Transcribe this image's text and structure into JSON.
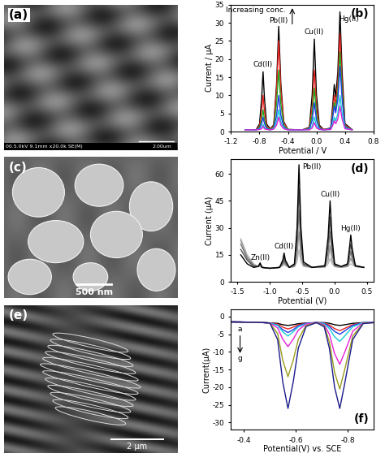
{
  "images": [
    {
      "label": "(a)",
      "info": "00.5.0kV 9.1mm x20.0k SE(M)",
      "scale_bar": "2.00um"
    },
    {
      "label": "(c)",
      "scale_bar": "500 nm"
    },
    {
      "label": "(e)",
      "scale_bar": "2 μm"
    }
  ],
  "chart_data": [
    {
      "type": "line",
      "title": "(b)",
      "x_label": "Potential / V",
      "y_label": "Current / μA",
      "x": [
        -1.0,
        -0.85,
        -0.8,
        -0.77,
        -0.75,
        -0.73,
        -0.7,
        -0.65,
        -0.6,
        -0.56,
        -0.53,
        -0.5,
        -0.46,
        -0.4,
        -0.2,
        -0.1,
        -0.06,
        -0.03,
        0.0,
        0.04,
        0.1,
        0.2,
        0.23,
        0.25,
        0.27,
        0.3,
        0.33,
        0.36,
        0.4,
        0.5
      ],
      "series": [
        {
          "color": "#000000",
          "values": [
            0.5,
            0.5,
            2.1,
            9.1,
            16.5,
            9.1,
            2.1,
            0.8,
            1.9,
            13.1,
            29,
            13.1,
            2.8,
            0.6,
            0.5,
            1.2,
            10.2,
            25.5,
            10.2,
            1.8,
            0.6,
            1.0,
            7.8,
            13,
            9.5,
            16.5,
            33,
            16.5,
            2.2,
            0.6
          ]
        },
        {
          "color": "#e8231f",
          "values": [
            0.5,
            0.5,
            1.5,
            5.5,
            10,
            5.5,
            1.5,
            0.7,
            1.7,
            11.3,
            25,
            11.3,
            2.5,
            0.6,
            0.5,
            1.0,
            6.8,
            17,
            6.8,
            1.3,
            0.6,
            0.9,
            6.0,
            10,
            7.5,
            13.5,
            27,
            13.5,
            1.8,
            0.6
          ]
        },
        {
          "color": "#1fa81f",
          "values": [
            0.5,
            0.5,
            1.1,
            3.3,
            6,
            3.3,
            1.1,
            0.6,
            1.3,
            7.7,
            17,
            7.7,
            1.8,
            0.6,
            0.5,
            0.8,
            4.8,
            12,
            4.8,
            1.0,
            0.5,
            0.8,
            4.8,
            8,
            6.0,
            11,
            22,
            11,
            1.5,
            0.5
          ]
        },
        {
          "color": "#1f3fe8",
          "values": [
            0.5,
            0.5,
            0.9,
            2.2,
            4,
            2.2,
            0.9,
            0.5,
            1.0,
            4.5,
            10,
            4.5,
            1.3,
            0.5,
            0.5,
            0.7,
            3.2,
            8,
            3.2,
            0.9,
            0.5,
            0.8,
            4.2,
            7,
            5.2,
            9,
            18,
            9,
            1.3,
            0.5
          ]
        },
        {
          "color": "#19c8d8",
          "values": [
            0.5,
            0.5,
            0.7,
            1.1,
            2,
            1.1,
            0.7,
            0.5,
            0.8,
            2.7,
            6,
            2.7,
            1.0,
            0.5,
            0.5,
            0.6,
            1.6,
            4,
            1.6,
            0.7,
            0.5,
            0.6,
            2.4,
            4,
            3.0,
            5,
            10,
            5,
            1.0,
            0.5
          ]
        },
        {
          "color": "#d81fd8",
          "values": [
            0.5,
            0.5,
            0.6,
            0.8,
            1.5,
            0.8,
            0.6,
            0.5,
            0.7,
            1.8,
            4,
            1.8,
            0.8,
            0.5,
            0.5,
            0.5,
            1.0,
            2.5,
            1.0,
            0.6,
            0.5,
            0.6,
            1.8,
            3,
            2.2,
            3.5,
            7,
            3.5,
            0.8,
            0.5
          ]
        }
      ],
      "xlim": [
        -1.2,
        0.8
      ],
      "xticks": [
        -1.2,
        -0.8,
        -0.4,
        0.0,
        0.4,
        0.8
      ],
      "ylim": [
        0,
        35
      ],
      "yticks": [
        0,
        5,
        10,
        15,
        20,
        25,
        30,
        35
      ],
      "annotations": [
        {
          "text": "Cd(II)",
          "x": -0.75,
          "y": 17.5
        },
        {
          "text": "Pb(II)",
          "x": -0.53,
          "y": 29.5
        },
        {
          "text": "Cu(II)",
          "x": -0.03,
          "y": 26.5
        },
        {
          "text": "Hg(II)",
          "x": 0.45,
          "y": 30
        },
        {
          "text": "Increasing conc.",
          "x": -0.85,
          "y": 32.5
        }
      ]
    },
    {
      "type": "line",
      "title": "(d)",
      "x_label": "Potential (V)",
      "y_label": "Current (μA)",
      "x": [
        -1.45,
        -1.35,
        -1.25,
        -1.18,
        -1.15,
        -1.12,
        -1.0,
        -0.85,
        -0.8,
        -0.78,
        -0.76,
        -0.7,
        -0.62,
        -0.58,
        -0.55,
        -0.52,
        -0.48,
        -0.35,
        -0.15,
        -0.1,
        -0.07,
        -0.04,
        0.0,
        0.1,
        0.2,
        0.23,
        0.25,
        0.27,
        0.32,
        0.45
      ],
      "series": [
        {
          "color": "#bbbbbb",
          "values": [
            24,
            15,
            10,
            8.5,
            8.5,
            8,
            7.5,
            8,
            9,
            10,
            9,
            8,
            8.5,
            11,
            18,
            11,
            8.5,
            8,
            8,
            10,
            13,
            10,
            8.5,
            8,
            8.5,
            9.5,
            10,
            9.5,
            8.5,
            8
          ]
        },
        {
          "color": "#999999",
          "values": [
            23,
            14,
            9.5,
            8.5,
            9,
            8,
            7.5,
            8,
            9.5,
            11,
            9.5,
            8,
            8.5,
            14,
            28,
            14,
            9,
            8,
            8.5,
            12,
            20,
            12,
            8.5,
            8,
            8.5,
            11,
            13,
            11,
            8.5,
            8
          ]
        },
        {
          "color": "#777777",
          "values": [
            21,
            13,
            9,
            8.5,
            9.5,
            8,
            7.5,
            8,
            10,
            12,
            10,
            8,
            9,
            19,
            40,
            19,
            9.5,
            8,
            8.5,
            16,
            28,
            16,
            9,
            8.5,
            9,
            13,
            17,
            13,
            8.5,
            8
          ]
        },
        {
          "color": "#555555",
          "values": [
            18,
            12,
            8.5,
            8.5,
            10,
            8,
            7.5,
            8,
            11,
            14,
            11,
            8,
            9.5,
            24,
            52,
            24,
            10,
            8,
            8.5,
            20,
            36,
            20,
            9.5,
            8.5,
            9.5,
            16,
            21,
            16,
            9,
            8
          ]
        },
        {
          "color": "#000000",
          "values": [
            15,
            10,
            8,
            8.5,
            10.5,
            8,
            7.5,
            8,
            12,
            16,
            12,
            8,
            10,
            30,
            65,
            30,
            11,
            8,
            9,
            25,
            45,
            25,
            10,
            8.5,
            10,
            19,
            26,
            19,
            9,
            8
          ]
        }
      ],
      "xlim": [
        -1.6,
        0.6
      ],
      "xticks": [
        -1.5,
        -1.0,
        -0.5,
        0.0,
        0.5
      ],
      "ylim": [
        0,
        68
      ],
      "yticks": [
        0,
        15,
        30,
        45,
        60
      ],
      "annotations": [
        {
          "text": "Zn(II)",
          "x": -1.15,
          "y": 11.5
        },
        {
          "text": "Cd(II)",
          "x": -0.78,
          "y": 17.5
        },
        {
          "text": "Pb(II)",
          "x": -0.35,
          "y": 62
        },
        {
          "text": "Cu(II)",
          "x": -0.07,
          "y": 46.5
        },
        {
          "text": "Hg(II)",
          "x": 0.25,
          "y": 27.5
        }
      ]
    },
    {
      "type": "line",
      "title": "(f)",
      "x_label": "Potential(V) vs. SCE",
      "y_label": "Current(μA)",
      "x": [
        -0.35,
        -0.45,
        -0.5,
        -0.53,
        -0.55,
        -0.57,
        -0.59,
        -0.61,
        -0.64,
        -0.68,
        -0.71,
        -0.73,
        -0.75,
        -0.77,
        -0.79,
        -0.82,
        -0.86,
        -0.9
      ],
      "series": [
        {
          "color": "#000000",
          "values": [
            -1.5,
            -1.6,
            -1.8,
            -1.9,
            -2.3,
            -2.5,
            -2.3,
            -2.0,
            -1.8,
            -1.7,
            -1.7,
            -1.9,
            -2.3,
            -2.5,
            -2.3,
            -1.9,
            -1.7,
            -1.7
          ]
        },
        {
          "color": "#e8231f",
          "values": [
            -1.5,
            -1.6,
            -1.8,
            -2.1,
            -3.0,
            -3.5,
            -3.0,
            -2.3,
            -1.9,
            -1.7,
            -1.8,
            -2.4,
            -3.4,
            -4,
            -3.3,
            -2.3,
            -1.7,
            -1.7
          ]
        },
        {
          "color": "#1f3fe8",
          "values": [
            -1.5,
            -1.6,
            -1.8,
            -2.4,
            -3.7,
            -4.5,
            -3.7,
            -2.6,
            -1.9,
            -1.7,
            -1.9,
            -2.8,
            -4.2,
            -5,
            -4.0,
            -2.5,
            -1.7,
            -1.7
          ]
        },
        {
          "color": "#19c8d8",
          "values": [
            -1.5,
            -1.6,
            -1.8,
            -2.5,
            -4.3,
            -5.5,
            -4.3,
            -2.9,
            -2.0,
            -1.7,
            -2.0,
            -3.4,
            -5.7,
            -7,
            -5.4,
            -2.9,
            -1.7,
            -1.7
          ]
        },
        {
          "color": "#e81fd8",
          "values": [
            -1.5,
            -1.6,
            -1.8,
            -3.2,
            -6.4,
            -8.5,
            -6.4,
            -3.8,
            -2.1,
            -1.7,
            -2.3,
            -5.0,
            -10.5,
            -13.5,
            -9.9,
            -4.1,
            -1.8,
            -1.7
          ]
        },
        {
          "color": "#9a9a1a",
          "values": [
            -1.5,
            -1.6,
            -1.8,
            -4.8,
            -12.4,
            -17,
            -12.4,
            -6.4,
            -2.5,
            -1.7,
            -2.6,
            -7.2,
            -15.8,
            -20.5,
            -14.7,
            -5.5,
            -1.9,
            -1.7
          ]
        },
        {
          "color": "#1a1a8c",
          "values": [
            -1.5,
            -1.6,
            -1.8,
            -6.5,
            -18.6,
            -26,
            -18.6,
            -8.9,
            -2.8,
            -1.7,
            -2.9,
            -9.0,
            -20,
            -26,
            -18.6,
            -6.5,
            -2.0,
            -1.7
          ]
        }
      ],
      "xlim": [
        -0.35,
        -0.9
      ],
      "xticks": [
        -0.4,
        -0.6,
        -0.8
      ],
      "ylim": [
        -32,
        2
      ],
      "yticks": [
        0,
        -5,
        -10,
        -15,
        -20,
        -25,
        -30
      ],
      "annotations": [
        {
          "text": "a",
          "x": -0.385,
          "y": -4.5
        },
        {
          "text": "g",
          "x": -0.385,
          "y": -13
        }
      ]
    }
  ]
}
